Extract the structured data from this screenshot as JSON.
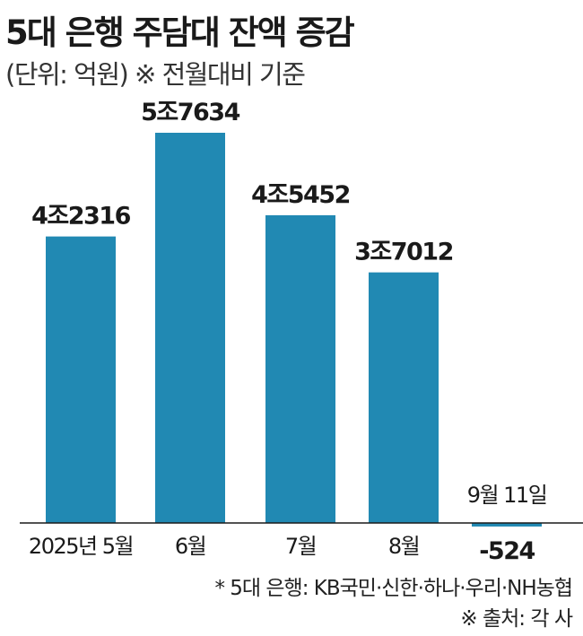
{
  "title": "5대 은행 주담대 잔액 증감",
  "subtitle": "(단위: 억원) ※ 전월대비 기준",
  "footnote": "* 5대 은행: KB국민·신한·하나·우리·NH농협",
  "source": "※ 출처: 각 사",
  "colors": {
    "bar": "#2189b3",
    "axis": "#1a1a1a",
    "text": "#1a1a1a"
  },
  "chart_data": {
    "type": "bar",
    "categories": [
      "2025년 5월",
      "6월",
      "7월",
      "8월",
      "9월 11일"
    ],
    "values": [
      42316,
      57634,
      45452,
      37012,
      -524
    ],
    "data_labels": [
      "4조2316",
      "5조7634",
      "4조5452",
      "3조7012",
      "-524"
    ],
    "ylim": [
      -1500,
      62000
    ],
    "grid": false
  }
}
